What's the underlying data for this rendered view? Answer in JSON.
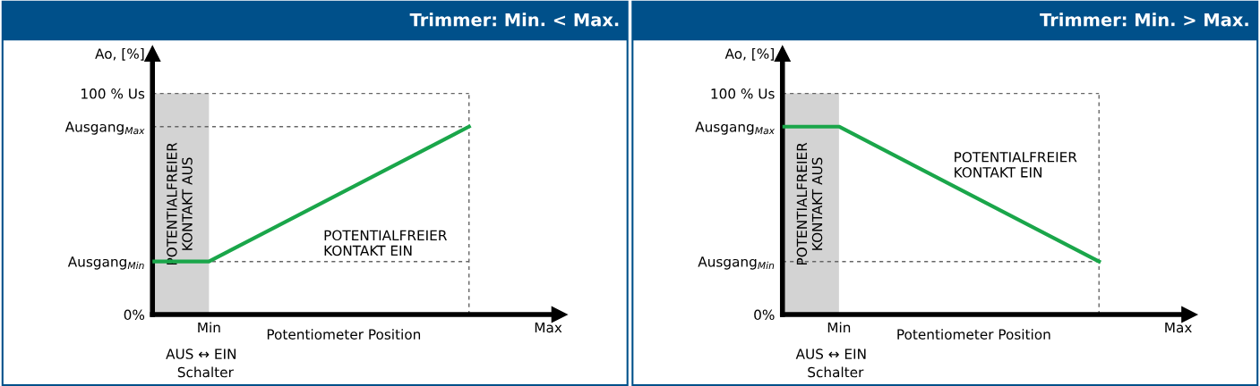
{
  "chart_data": [
    {
      "type": "line",
      "title": "Trimmer: Min. < Max.",
      "xlabel": "Potentiometer Position",
      "ylabel": "Ao, [%]",
      "categories": [
        null,
        null,
        null,
        null,
        null,
        "Min",
        null,
        null,
        null,
        null,
        null,
        null,
        null,
        null,
        null,
        null,
        null,
        null,
        null,
        null,
        null,
        null,
        null,
        null,
        null,
        null,
        null,
        null,
        null,
        null,
        null,
        null,
        null,
        null,
        null,
        "Max"
      ],
      "ylim": [
        0,
        118
      ],
      "yticks": [
        {
          "value": 0,
          "label": "0%"
        },
        {
          "value": 24,
          "label": "Ausgang$_{Min}$"
        },
        {
          "value": 85,
          "label": "Ausgang$_{Max}$"
        },
        {
          "value": 100,
          "label": "100 % Us"
        }
      ],
      "series": [
        {
          "values": [
            24,
            null,
            null,
            null,
            null,
            24,
            null,
            null,
            null,
            null,
            null,
            null,
            null,
            null,
            null,
            null,
            null,
            null,
            null,
            null,
            null,
            null,
            null,
            null,
            null,
            null,
            null,
            null,
            85,
            null,
            null,
            null,
            null,
            null,
            null,
            null
          ],
          "color": "#1aa64a"
        }
      ],
      "ref_lines": [
        {
          "axis": "y",
          "value": 100,
          "line_style": "dashed",
          "color": "#666666"
        },
        {
          "axis": "y",
          "value": 85,
          "line_style": "dashed",
          "color": "#666666"
        },
        {
          "axis": "y",
          "value": 24,
          "line_style": "dashed",
          "color": "#666666"
        }
      ],
      "annotations": [
        "POTENTIALFREIER\nKONTAKT AUS",
        "POTENTIALFREIER\nKONTAKT EIN",
        "AUS ↔ EIN",
        "Schalter"
      ]
    },
    {
      "type": "line",
      "title": "Trimmer: Min. > Max.",
      "xlabel": "Potentiometer Position",
      "ylabel": "Ao, [%]",
      "categories": [
        null,
        null,
        null,
        null,
        null,
        "Min",
        null,
        null,
        null,
        null,
        null,
        null,
        null,
        null,
        null,
        null,
        null,
        null,
        null,
        null,
        null,
        null,
        null,
        null,
        null,
        null,
        null,
        null,
        null,
        null,
        null,
        null,
        null,
        null,
        null,
        "Max"
      ],
      "ylim": [
        0,
        118
      ],
      "yticks": [
        {
          "value": 0,
          "label": "0%"
        },
        {
          "value": 24,
          "label": "Ausgang$_{Min}$"
        },
        {
          "value": 85,
          "label": "Ausgang$_{Max}$"
        },
        {
          "value": 100,
          "label": "100 % Us"
        }
      ],
      "series": [
        {
          "values": [
            85,
            null,
            null,
            null,
            null,
            85,
            null,
            null,
            null,
            null,
            null,
            null,
            null,
            null,
            null,
            null,
            null,
            null,
            null,
            null,
            null,
            null,
            null,
            null,
            null,
            null,
            null,
            null,
            24,
            null,
            null,
            null,
            null,
            null,
            null,
            null
          ],
          "color": "#1aa64a"
        }
      ],
      "ref_lines": [
        {
          "axis": "y",
          "value": 100,
          "line_style": "dashed",
          "color": "#666666"
        },
        {
          "axis": "y",
          "value": 24,
          "line_style": "dashed",
          "color": "#666666"
        }
      ],
      "annotations": [
        "POTENTIALFREIER\nKONTAKT AUS",
        "POTENTIALFREIER\nKONTAKT EIN",
        "AUS ↔ EIN",
        "Schalter"
      ]
    }
  ]
}
